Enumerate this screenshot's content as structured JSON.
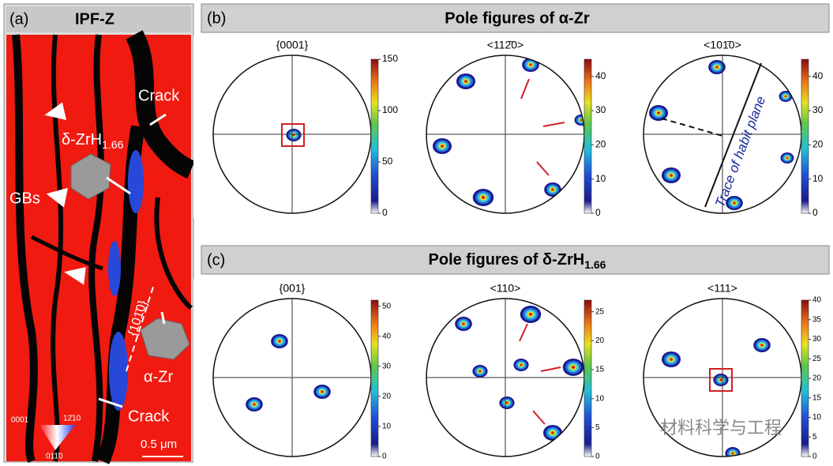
{
  "panel_a": {
    "label": "(a)",
    "title": "IPF-Z",
    "annotations": {
      "crack_top": "Crack",
      "hydride": "δ-ZrH",
      "hydride_sub": "1.66",
      "gbs": "GBs",
      "trace": "{101̄0}",
      "alpha": "α-Zr",
      "crack_bottom": "Crack",
      "scale": "0.5 μm"
    },
    "key": [
      "0001",
      "12̄10",
      "011̄0"
    ]
  },
  "panel_b": {
    "label": "(b)",
    "title": "Pole figures of α-Zr",
    "figures": [
      {
        "title": "{0001}",
        "cbar_max": 150,
        "ticks": [
          0,
          50,
          100,
          150
        ]
      },
      {
        "title": "<112̄0>",
        "cbar_max": 45,
        "ticks": [
          0,
          10,
          20,
          30,
          40
        ]
      },
      {
        "title": "<101̄0>",
        "cbar_max": 45,
        "ticks": [
          0,
          10,
          20,
          30,
          40
        ],
        "annotation": "Trace of habit plane"
      }
    ]
  },
  "panel_c": {
    "label": "(c)",
    "title": "Pole figures of δ-ZrH",
    "title_sub": "1.66",
    "figures": [
      {
        "title": "{001}",
        "cbar_max": 52,
        "ticks": [
          0,
          10,
          20,
          30,
          40,
          50
        ]
      },
      {
        "title": "<110>",
        "cbar_max": 27,
        "ticks": [
          0,
          5,
          10,
          15,
          20,
          25
        ]
      },
      {
        "title": "<111>",
        "cbar_max": 40,
        "ticks": [
          0,
          5,
          10,
          15,
          20,
          25,
          30,
          35,
          40
        ]
      }
    ]
  },
  "watermark": "材料科学与工程"
}
